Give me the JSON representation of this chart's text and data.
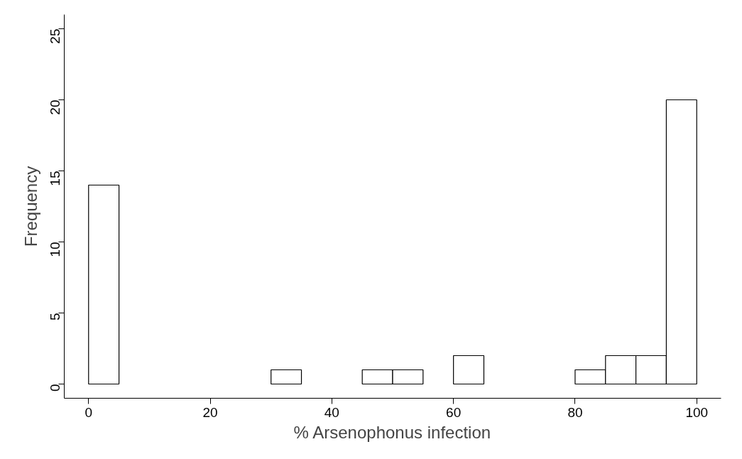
{
  "chart_data": {
    "type": "histogram",
    "xlabel": "% Arsenophonus infection",
    "ylabel": "Frequency",
    "bins": [
      0,
      5,
      10,
      15,
      20,
      25,
      30,
      35,
      40,
      45,
      50,
      55,
      60,
      65,
      70,
      75,
      80,
      85,
      90,
      95,
      100
    ],
    "values": [
      14,
      0,
      0,
      0,
      0,
      0,
      1,
      0,
      0,
      1,
      1,
      0,
      2,
      0,
      0,
      0,
      1,
      2,
      2,
      20
    ],
    "color": "#ffffff",
    "xlim": [
      -4,
      104
    ],
    "ylim": [
      -1,
      26
    ],
    "xticks": [
      0,
      20,
      40,
      60,
      80,
      100
    ],
    "yticks": [
      0,
      5,
      10,
      15,
      20,
      25
    ],
    "grid": false
  }
}
